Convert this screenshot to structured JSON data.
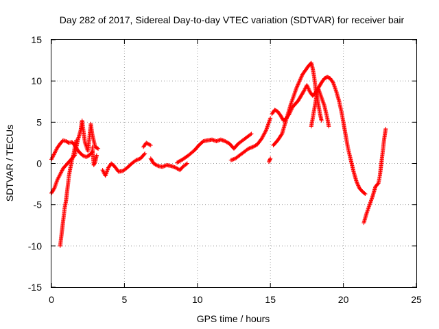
{
  "chart_data": {
    "type": "scatter",
    "title": "Day 282 of 2017, Sidereal Day-to-day VTEC variation (SDTVAR) for receiver bair",
    "xlabel": "GPS time / hours",
    "ylabel": "SDTVAR / TECUs",
    "xlim": [
      0,
      25
    ],
    "ylim": [
      -15,
      15
    ],
    "xticks": [
      "0",
      "5",
      "10",
      "15",
      "20",
      "25"
    ],
    "yticks": [
      "-15",
      "-10",
      "-5",
      "0",
      "5",
      "10",
      "15"
    ],
    "grid": true,
    "marker": "+",
    "color": "#ff0000",
    "series": [
      {
        "points": [
          [
            0.0,
            0.5
          ],
          [
            0.2,
            1.2
          ],
          [
            0.4,
            1.9
          ],
          [
            0.6,
            2.4
          ],
          [
            0.8,
            2.8
          ],
          [
            1.0,
            2.7
          ],
          [
            1.2,
            2.5
          ],
          [
            1.4,
            2.6
          ],
          [
            1.6,
            2.2
          ],
          [
            1.8,
            1.6
          ],
          [
            2.0,
            1.2
          ],
          [
            2.2,
            0.9
          ],
          [
            2.4,
            0.8
          ],
          [
            2.6,
            1.0
          ],
          [
            2.8,
            1.4
          ]
        ]
      },
      {
        "points": [
          [
            0.0,
            -3.6
          ],
          [
            0.2,
            -3.0
          ],
          [
            0.4,
            -2.0
          ],
          [
            0.6,
            -1.3
          ],
          [
            0.8,
            -0.6
          ],
          [
            1.0,
            -0.2
          ],
          [
            1.2,
            0.2
          ],
          [
            1.4,
            0.6
          ],
          [
            1.6,
            1.0
          ],
          [
            1.8,
            2.8
          ],
          [
            2.0,
            4.0
          ],
          [
            2.1,
            5.2
          ],
          [
            2.3,
            2.5
          ],
          [
            2.5,
            1.5
          ],
          [
            2.7,
            4.8
          ],
          [
            2.8,
            3.5
          ],
          [
            3.0,
            2.0
          ],
          [
            3.2,
            1.8
          ]
        ]
      },
      {
        "points": [
          [
            0.6,
            -10.0
          ],
          [
            0.7,
            -8.5
          ],
          [
            0.8,
            -7.0
          ],
          [
            0.9,
            -5.5
          ],
          [
            1.0,
            -4.5
          ],
          [
            1.1,
            -3.0
          ],
          [
            1.2,
            -1.5
          ],
          [
            1.3,
            -0.5
          ],
          [
            1.4,
            0.4
          ],
          [
            1.5,
            1.0
          ],
          [
            1.6,
            2.0
          ],
          [
            1.7,
            2.8
          ]
        ]
      },
      {
        "points": [
          [
            2.8,
            2.0
          ],
          [
            2.9,
            -0.2
          ],
          [
            3.0,
            0.2
          ],
          [
            3.1,
            1.0
          ]
        ]
      },
      {
        "points": [
          [
            3.5,
            -0.8
          ],
          [
            3.7,
            -1.5
          ],
          [
            3.9,
            -0.5
          ],
          [
            4.1,
            0.0
          ],
          [
            4.3,
            -0.3
          ],
          [
            4.6,
            -1.0
          ],
          [
            4.9,
            -0.9
          ],
          [
            5.2,
            -0.5
          ],
          [
            5.5,
            0.0
          ],
          [
            5.8,
            0.4
          ],
          [
            6.1,
            0.6
          ],
          [
            6.4,
            1.2
          ]
        ]
      },
      {
        "points": [
          [
            6.3,
            2.0
          ],
          [
            6.5,
            2.5
          ],
          [
            6.8,
            2.2
          ]
        ]
      },
      {
        "points": [
          [
            6.8,
            0.6
          ],
          [
            7.0,
            0.0
          ],
          [
            7.3,
            -0.3
          ],
          [
            7.6,
            -0.4
          ],
          [
            7.9,
            -0.2
          ],
          [
            8.2,
            -0.3
          ],
          [
            8.5,
            -0.5
          ],
          [
            8.8,
            -0.8
          ],
          [
            9.0,
            -0.4
          ],
          [
            9.3,
            0.0
          ]
        ]
      },
      {
        "points": [
          [
            8.6,
            0.1
          ],
          [
            9.0,
            0.5
          ],
          [
            9.4,
            1.0
          ],
          [
            9.8,
            1.6
          ],
          [
            10.1,
            2.2
          ],
          [
            10.4,
            2.7
          ],
          [
            10.7,
            2.8
          ],
          [
            11.0,
            2.9
          ],
          [
            11.3,
            2.7
          ],
          [
            11.6,
            2.9
          ],
          [
            11.9,
            2.7
          ],
          [
            12.2,
            2.4
          ],
          [
            12.5,
            1.8
          ],
          [
            12.8,
            2.4
          ],
          [
            13.1,
            2.8
          ],
          [
            13.4,
            3.2
          ],
          [
            13.7,
            3.6
          ]
        ]
      },
      {
        "points": [
          [
            12.3,
            0.4
          ],
          [
            12.6,
            0.6
          ],
          [
            12.9,
            1.0
          ],
          [
            13.2,
            1.4
          ],
          [
            13.5,
            1.8
          ],
          [
            13.8,
            2.0
          ],
          [
            14.1,
            2.3
          ],
          [
            14.4,
            3.0
          ],
          [
            14.7,
            4.0
          ],
          [
            14.9,
            5.0
          ],
          [
            15.0,
            5.5
          ]
        ]
      },
      {
        "points": [
          [
            14.9,
            0.2
          ],
          [
            15.0,
            0.6
          ]
        ]
      },
      {
        "points": [
          [
            15.2,
            2.2
          ],
          [
            15.5,
            2.8
          ],
          [
            15.8,
            3.6
          ],
          [
            16.0,
            4.8
          ],
          [
            16.2,
            6.0
          ],
          [
            16.4,
            7.2
          ],
          [
            16.6,
            8.2
          ],
          [
            16.8,
            9.2
          ],
          [
            17.0,
            10.0
          ],
          [
            17.2,
            10.8
          ],
          [
            17.4,
            11.3
          ],
          [
            17.6,
            11.8
          ],
          [
            17.8,
            12.2
          ],
          [
            17.9,
            11.5
          ],
          [
            18.0,
            10.5
          ],
          [
            18.1,
            9.0
          ],
          [
            18.2,
            8.0
          ],
          [
            18.3,
            7.0
          ],
          [
            18.4,
            6.0
          ],
          [
            18.5,
            5.2
          ]
        ]
      },
      {
        "points": [
          [
            15.1,
            6.0
          ],
          [
            15.3,
            6.5
          ],
          [
            15.5,
            6.3
          ],
          [
            15.7,
            5.8
          ],
          [
            15.9,
            5.2
          ],
          [
            16.1,
            5.5
          ],
          [
            16.3,
            6.0
          ],
          [
            16.5,
            6.8
          ],
          [
            16.7,
            7.2
          ],
          [
            16.9,
            7.6
          ],
          [
            17.1,
            8.2
          ],
          [
            17.3,
            8.8
          ],
          [
            17.5,
            9.5
          ],
          [
            17.7,
            8.7
          ],
          [
            17.9,
            8.2
          ],
          [
            18.1,
            8.6
          ],
          [
            18.3,
            9.2
          ],
          [
            18.5,
            9.8
          ],
          [
            18.7,
            10.3
          ],
          [
            18.9,
            10.5
          ],
          [
            19.1,
            10.3
          ],
          [
            19.3,
            9.8
          ],
          [
            19.5,
            8.8
          ],
          [
            19.7,
            7.6
          ],
          [
            19.9,
            6.0
          ],
          [
            20.1,
            4.0
          ],
          [
            20.3,
            2.0
          ],
          [
            20.5,
            0.5
          ],
          [
            20.7,
            -1.0
          ],
          [
            20.9,
            -2.2
          ],
          [
            21.1,
            -3.0
          ],
          [
            21.3,
            -3.4
          ],
          [
            21.5,
            -3.7
          ]
        ]
      },
      {
        "points": [
          [
            17.8,
            4.5
          ],
          [
            17.9,
            5.5
          ],
          [
            18.0,
            6.5
          ],
          [
            18.1,
            7.5
          ],
          [
            18.2,
            8.8
          ],
          [
            18.3,
            9.0
          ],
          [
            18.5,
            8.0
          ],
          [
            18.7,
            7.0
          ],
          [
            18.9,
            5.5
          ],
          [
            19.0,
            4.5
          ]
        ]
      },
      {
        "points": [
          [
            21.4,
            -7.2
          ],
          [
            21.6,
            -6.0
          ],
          [
            21.8,
            -5.0
          ],
          [
            22.0,
            -4.0
          ],
          [
            22.2,
            -2.8
          ],
          [
            22.4,
            -2.4
          ],
          [
            22.5,
            -1.5
          ],
          [
            22.6,
            0.0
          ],
          [
            22.7,
            1.5
          ],
          [
            22.8,
            3.0
          ],
          [
            22.9,
            4.2
          ]
        ]
      }
    ]
  }
}
